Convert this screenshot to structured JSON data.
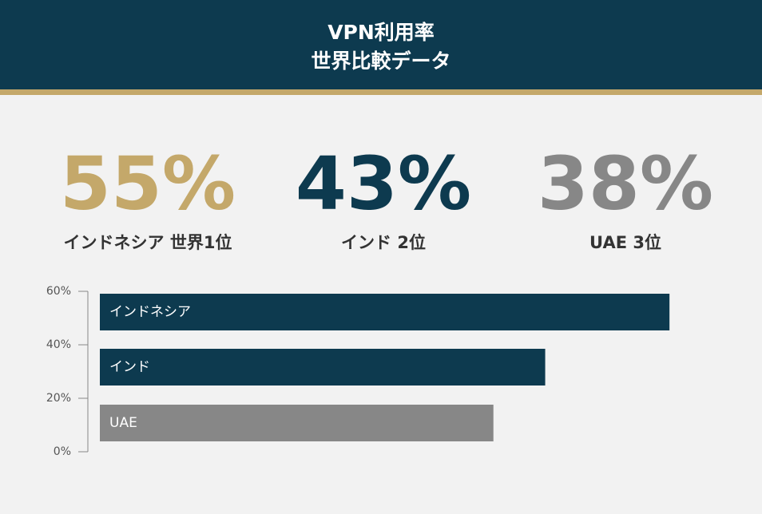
{
  "header": {
    "title_lines": [
      "VPN利用率",
      "世界比較データ"
    ]
  },
  "stats": [
    {
      "value": "55%",
      "label": "インドネシア 世界1位",
      "color": "#c4a86a"
    },
    {
      "value": "43%",
      "label": "インド 2位",
      "color": "#0d3a4f"
    },
    {
      "value": "38%",
      "label": "UAE 3位",
      "color": "#878787"
    }
  ],
  "chart_data": {
    "type": "bar",
    "orientation": "horizontal",
    "categories": [
      "インドネシア",
      "インド",
      "UAE"
    ],
    "values": [
      55,
      43,
      38
    ],
    "colors": [
      "#0d3a4f",
      "#0d3a4f",
      "#878787"
    ],
    "ylim": [
      0,
      60
    ],
    "yticks": [
      {
        "value": 0,
        "label": "0%"
      },
      {
        "value": 20,
        "label": "20%"
      },
      {
        "value": 40,
        "label": "40%"
      },
      {
        "value": 60,
        "label": "60%"
      }
    ]
  }
}
